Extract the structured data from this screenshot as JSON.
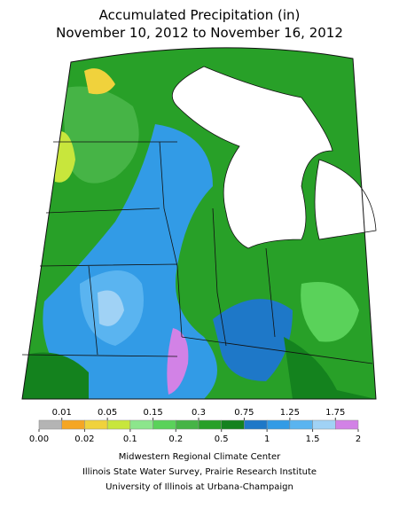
{
  "title": [
    "Accumulated Precipitation (in)",
    "November 10, 2012 to November 16, 2012"
  ],
  "legend": {
    "colors": [
      "#b4b4b4",
      "#f5a623",
      "#f0d23c",
      "#c8e63c",
      "#8ce68c",
      "#5ad25a",
      "#46b446",
      "#28a028",
      "#14821e",
      "#1e78c8",
      "#329be6",
      "#5ab4f0",
      "#a0d2f5",
      "#d282e6"
    ],
    "ticks": [
      {
        "value": 0,
        "label": "0.00"
      },
      0.01,
      0.02,
      0.05,
      0.1,
      0.15,
      0.2,
      0.3,
      0.5,
      0.75,
      1,
      1.25,
      1.5,
      1.75,
      2
    ]
  },
  "credits": [
    "Midwestern Regional Climate Center",
    "Illinois State Water Survey, Prairie Research Institute",
    "University of Illinois at Urbana-Champaign"
  ]
}
